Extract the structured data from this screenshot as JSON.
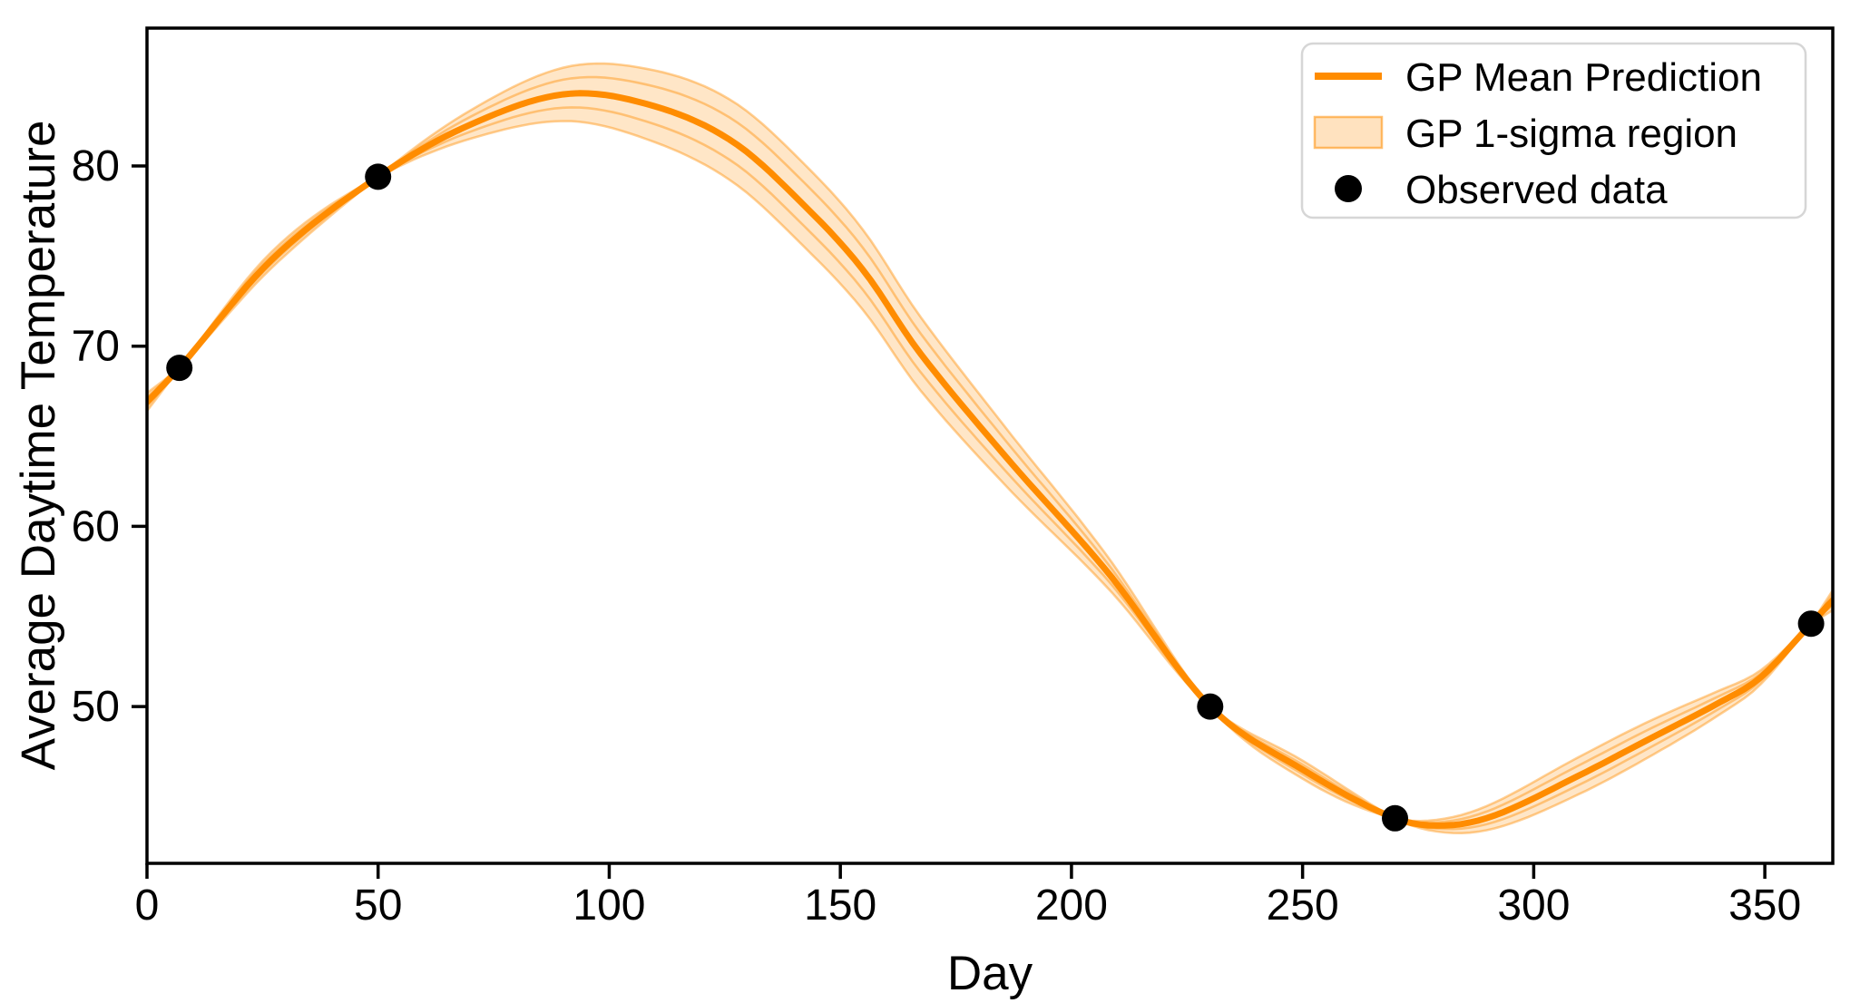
{
  "colors": {
    "line": "#ff8c00",
    "band_fill": "rgba(255,140,0,0.22)",
    "point": "#000000",
    "spine": "#000000",
    "text": "#000000",
    "legend_border": "#d6d6d6",
    "background": "#ffffff"
  },
  "labels": {
    "xlabel": "Day",
    "ylabel": "Average Daytime Temperature"
  },
  "legend": {
    "position": "upper right",
    "items": [
      {
        "label": "GP Mean Prediction",
        "marker": "line"
      },
      {
        "label": "GP 1-sigma region",
        "marker": "patch"
      },
      {
        "label": "Observed data",
        "marker": "dot"
      }
    ]
  },
  "chart_data": {
    "type": "line",
    "title": "",
    "xlabel": "Day",
    "ylabel": "Average Daytime Temperature",
    "xlim": [
      0,
      364.7
    ],
    "ylim": [
      41.3,
      87.65
    ],
    "x_ticks": [
      0,
      50,
      100,
      150,
      200,
      250,
      300,
      350
    ],
    "y_ticks": [
      50,
      60,
      70,
      80
    ],
    "grid": false,
    "legend_position": "upper right",
    "series": [
      {
        "name": "GP Mean Prediction",
        "type": "line",
        "color": "#ff8c00",
        "points": [
          [
            0,
            66.9
          ],
          [
            7,
            68.8
          ],
          [
            27,
            74.8
          ],
          [
            50,
            79.4
          ],
          [
            70,
            82.3
          ],
          [
            91,
            84.0
          ],
          [
            110,
            83.3
          ],
          [
            127,
            81.3
          ],
          [
            143,
            77.6
          ],
          [
            155,
            74.2
          ],
          [
            167,
            69.7
          ],
          [
            186,
            63.8
          ],
          [
            208,
            57.4
          ],
          [
            230,
            50.0
          ],
          [
            250,
            46.5
          ],
          [
            270,
            43.8
          ],
          [
            281,
            43.4
          ],
          [
            292,
            44.0
          ],
          [
            310,
            46.2
          ],
          [
            325,
            48.2
          ],
          [
            340,
            50.2
          ],
          [
            349,
            51.6
          ],
          [
            360,
            54.6
          ],
          [
            364.7,
            55.9
          ]
        ]
      },
      {
        "name": "GP 1-sigma region",
        "type": "band",
        "color": "rgba(255,140,0,0.22)",
        "sigma_bumps": [
          {
            "x0": 0,
            "x1": 7,
            "shape": "taper_left",
            "amp": 0.5
          },
          {
            "x0": 7,
            "x1": 50,
            "shape": "sine",
            "amp": 0.45
          },
          {
            "x0": 50,
            "x1": 230,
            "shape": "sine",
            "amp": 2.3
          },
          {
            "x0": 230,
            "x1": 270,
            "shape": "sine",
            "amp": 0.5
          },
          {
            "x0": 270,
            "x1": 360,
            "shape": "sine",
            "amp": 1.05
          },
          {
            "x0": 360,
            "x1": 364.7,
            "shape": "taper_right",
            "amp": 0.55
          }
        ],
        "sample_path_coefficients": [
          1.0,
          0.55,
          -0.5,
          -1.0
        ]
      },
      {
        "name": "Observed data",
        "type": "scatter",
        "color": "#000000",
        "points": [
          [
            7,
            68.8
          ],
          [
            50,
            79.4
          ],
          [
            230,
            50.0
          ],
          [
            270,
            43.8
          ],
          [
            360,
            54.6
          ]
        ]
      }
    ]
  }
}
